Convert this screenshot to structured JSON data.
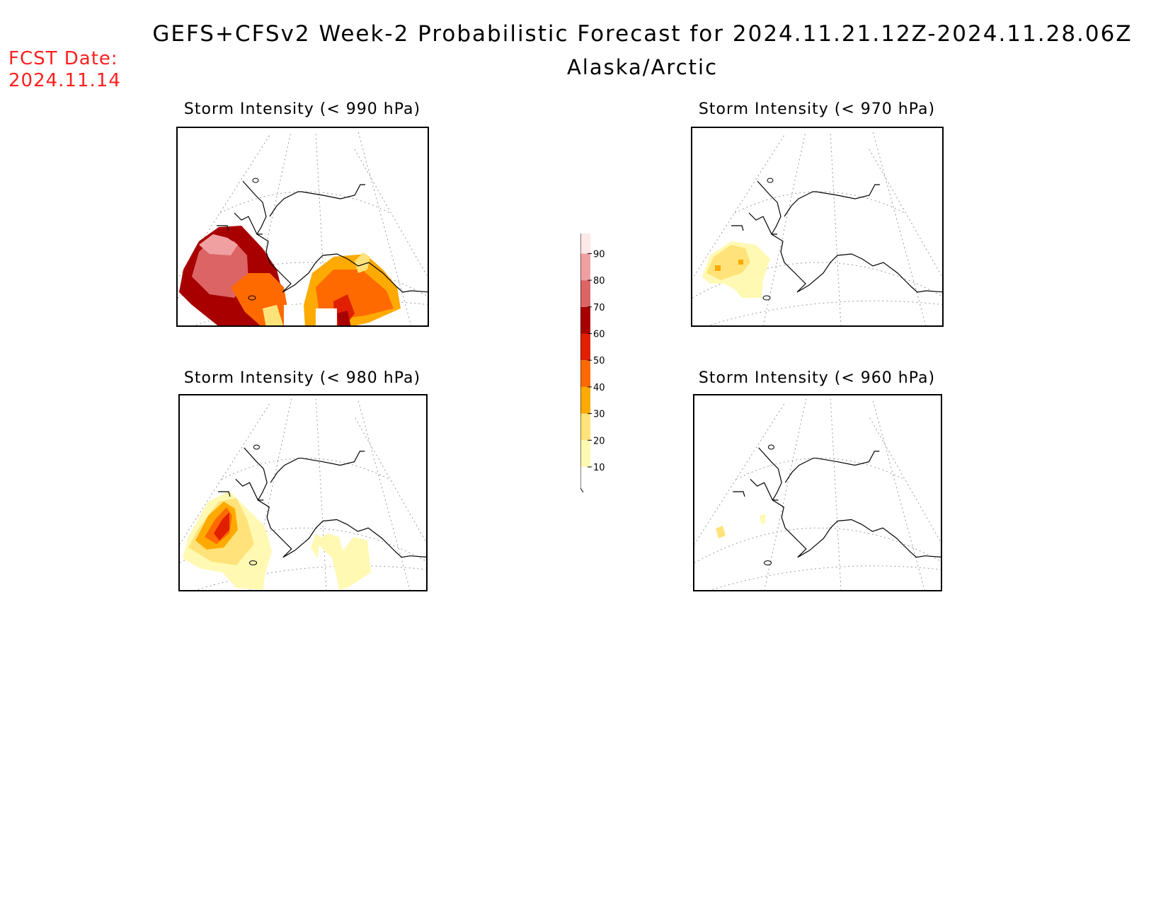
{
  "header": {
    "title": "GEFS+CFSv2 Week-2 Probabilistic Forecast for 2024.11.21.12Z-2024.11.28.06Z",
    "subtitle": "Alaska/Arctic",
    "fcst_label": "FCST Date:",
    "fcst_date": "2024.11.14"
  },
  "colors": {
    "c10": "#fff9b3",
    "c20": "#ffe37a",
    "c30": "#ffaa00",
    "c40": "#ff6a00",
    "c50": "#e02000",
    "c60": "#a80000",
    "c70": "#dc6464",
    "c80": "#f0a0a0",
    "c90": "#ffe8e8"
  },
  "colorbar": {
    "ticks": [
      "10",
      "20",
      "30",
      "40",
      "50",
      "60",
      "70",
      "80",
      "90"
    ]
  },
  "panels": [
    {
      "id": "p990",
      "title": "Storm Intensity (< 990 hPa)",
      "max_probability_percent": 90
    },
    {
      "id": "p970",
      "title": "Storm Intensity (< 970 hPa)",
      "max_probability_percent": 30
    },
    {
      "id": "p980",
      "title": "Storm Intensity (< 980 hPa)",
      "max_probability_percent": 60
    },
    {
      "id": "p960",
      "title": "Storm Intensity (< 960 hPa)",
      "max_probability_percent": 20
    }
  ]
}
